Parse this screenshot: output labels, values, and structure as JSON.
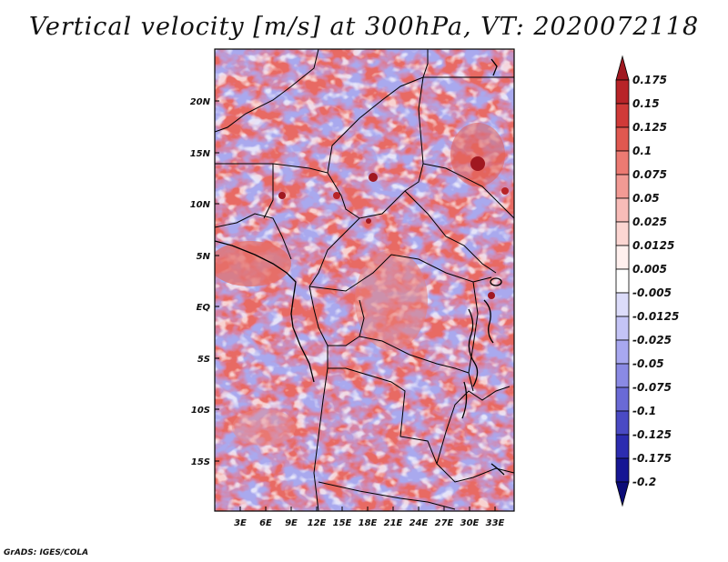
{
  "title": "Vertical velocity [m/s] at 300hPa, VT: 2020072118",
  "credit": "GrADS: IGES/COLA",
  "map": {
    "lon_labels": [
      "3E",
      "6E",
      "9E",
      "12E",
      "15E",
      "18E",
      "21E",
      "24E",
      "27E",
      "30E",
      "33E"
    ],
    "lat_labels": [
      "20N",
      "15N",
      "10N",
      "5N",
      "EQ",
      "5S",
      "10S",
      "15S"
    ]
  },
  "colorbar": {
    "levels": [
      "0.175",
      "0.15",
      "0.125",
      "0.1",
      "0.075",
      "0.05",
      "0.025",
      "0.0125",
      "0.005",
      "-0.005",
      "-0.0125",
      "-0.025",
      "-0.05",
      "-0.075",
      "-0.1",
      "-0.125",
      "-0.175",
      "-0.2"
    ],
    "colors": [
      "#a01820",
      "#b82428",
      "#d03a38",
      "#e05850",
      "#ec7a72",
      "#f29a94",
      "#f8bcb8",
      "#fcd6d2",
      "#fff0ee",
      "#ffffff",
      "#dcdcfa",
      "#c4c4f6",
      "#a8a8f0",
      "#8a8ae4",
      "#6a6ad6",
      "#4a4ac4",
      "#2c2cb0",
      "#161694",
      "#0c0c78"
    ]
  }
}
